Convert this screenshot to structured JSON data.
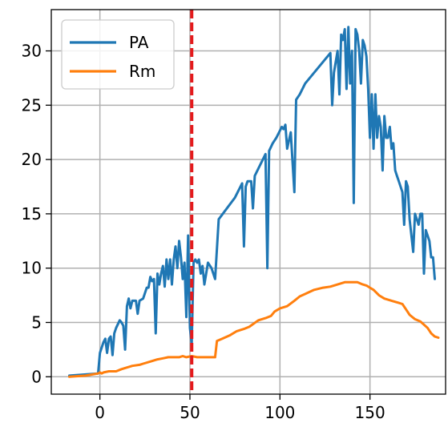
{
  "chart_data": {
    "type": "line",
    "title": "",
    "xlabel": "",
    "ylabel": "",
    "xlim": [
      -27,
      192
    ],
    "ylim": [
      -1.6,
      33.8
    ],
    "xticks": [
      0,
      50,
      100,
      150
    ],
    "yticks": [
      0,
      5,
      10,
      15,
      20,
      25,
      30
    ],
    "grid": true,
    "legend": "top-left",
    "vline": {
      "x": 51,
      "color": "#e41a1c",
      "style": "dashed"
    },
    "series": [
      {
        "name": "PA",
        "color": "#1f77b4",
        "points": [
          [
            -17,
            0.1
          ],
          [
            -1,
            0.3
          ],
          [
            0,
            2.2
          ],
          [
            2,
            3.2
          ],
          [
            3,
            3.5
          ],
          [
            4,
            2.2
          ],
          [
            5,
            3.5
          ],
          [
            6,
            3.7
          ],
          [
            7,
            2.0
          ],
          [
            8,
            4.0
          ],
          [
            9,
            4.5
          ],
          [
            11,
            5.2
          ],
          [
            12,
            5.0
          ],
          [
            13,
            4.7
          ],
          [
            14,
            2.5
          ],
          [
            15,
            6.5
          ],
          [
            16,
            7.2
          ],
          [
            17,
            6.3
          ],
          [
            18,
            7.0
          ],
          [
            20,
            7.0
          ],
          [
            21,
            5.8
          ],
          [
            22,
            7.0
          ],
          [
            24,
            7.2
          ],
          [
            26,
            8.2
          ],
          [
            27,
            8.2
          ],
          [
            28,
            9.2
          ],
          [
            29,
            8.8
          ],
          [
            30,
            9.0
          ],
          [
            31,
            4.0
          ],
          [
            32,
            9.5
          ],
          [
            33,
            8.5
          ],
          [
            34,
            9.5
          ],
          [
            35,
            10.2
          ],
          [
            36,
            8.3
          ],
          [
            37,
            10.8
          ],
          [
            38,
            9.0
          ],
          [
            39,
            10.8
          ],
          [
            40,
            8.5
          ],
          [
            41,
            10.8
          ],
          [
            42,
            12.0
          ],
          [
            43,
            10.0
          ],
          [
            44,
            12.5
          ],
          [
            45,
            11.0
          ],
          [
            46,
            9.0
          ],
          [
            47,
            10.5
          ],
          [
            48,
            5.5
          ],
          [
            49,
            13.0
          ],
          [
            50,
            4.5
          ],
          [
            51,
            3.0
          ],
          [
            52,
            10.5
          ],
          [
            53,
            10.8
          ],
          [
            54,
            10.5
          ],
          [
            55,
            10.8
          ],
          [
            56,
            9.5
          ],
          [
            57,
            10.2
          ],
          [
            58,
            8.5
          ],
          [
            60,
            10.5
          ],
          [
            62,
            10.0
          ],
          [
            64,
            9.0
          ],
          [
            66,
            14.5
          ],
          [
            75,
            16.5
          ],
          [
            79,
            17.8
          ],
          [
            80,
            12.0
          ],
          [
            81,
            17.5
          ],
          [
            82,
            18.0
          ],
          [
            84,
            18.0
          ],
          [
            85,
            15.5
          ],
          [
            86,
            18.5
          ],
          [
            92,
            20.5
          ],
          [
            93,
            10.0
          ],
          [
            94,
            20.8
          ],
          [
            96,
            21.5
          ],
          [
            98,
            22.0
          ],
          [
            101,
            23.0
          ],
          [
            102,
            22.8
          ],
          [
            103,
            23.2
          ],
          [
            104,
            21.0
          ],
          [
            106,
            22.5
          ],
          [
            108,
            17.0
          ],
          [
            109,
            25.5
          ],
          [
            111,
            26.0
          ],
          [
            114,
            27.0
          ],
          [
            128,
            29.8
          ],
          [
            129,
            25.0
          ],
          [
            130,
            28.0
          ],
          [
            132,
            30.0
          ],
          [
            133,
            26.0
          ],
          [
            134,
            31.5
          ],
          [
            135,
            31.0
          ],
          [
            136,
            32.0
          ],
          [
            137,
            26.5
          ],
          [
            138,
            32.2
          ],
          [
            139,
            27.0
          ],
          [
            140,
            30.0
          ],
          [
            141,
            16.0
          ],
          [
            142,
            32.0
          ],
          [
            143,
            31.5
          ],
          [
            144,
            30.0
          ],
          [
            145,
            27.0
          ],
          [
            146,
            31.0
          ],
          [
            147,
            30.5
          ],
          [
            148,
            29.5
          ],
          [
            149,
            26.5
          ],
          [
            150,
            22.0
          ],
          [
            151,
            26.0
          ],
          [
            152,
            21.0
          ],
          [
            153,
            26.0
          ],
          [
            154,
            22.0
          ],
          [
            155,
            24.0
          ],
          [
            156,
            23.0
          ],
          [
            157,
            19.0
          ],
          [
            158,
            24.0
          ],
          [
            159,
            22.0
          ],
          [
            160,
            22.0
          ],
          [
            161,
            23.0
          ],
          [
            162,
            21.0
          ],
          [
            163,
            21.5
          ],
          [
            164,
            19.0
          ],
          [
            165,
            18.5
          ],
          [
            166,
            18.0
          ],
          [
            168,
            17.0
          ],
          [
            169,
            14.0
          ],
          [
            170,
            18.0
          ],
          [
            171,
            17.5
          ],
          [
            172,
            14.5
          ],
          [
            174,
            11.5
          ],
          [
            175,
            15.0
          ],
          [
            176,
            14.5
          ],
          [
            177,
            14.0
          ],
          [
            178,
            15.0
          ],
          [
            179,
            15.0
          ],
          [
            180,
            9.5
          ],
          [
            181,
            13.5
          ],
          [
            183,
            12.5
          ],
          [
            184,
            11.0
          ],
          [
            185,
            11.0
          ],
          [
            186,
            9.0
          ]
        ]
      },
      {
        "name": "Rm",
        "color": "#ff7f0e",
        "points": [
          [
            -17,
            0.0
          ],
          [
            -8,
            0.1
          ],
          [
            -1,
            0.3
          ],
          [
            0,
            0.4
          ],
          [
            1,
            0.3
          ],
          [
            2,
            0.4
          ],
          [
            5,
            0.5
          ],
          [
            9,
            0.5
          ],
          [
            12,
            0.7
          ],
          [
            16,
            0.9
          ],
          [
            18,
            1.0
          ],
          [
            22,
            1.1
          ],
          [
            24,
            1.2
          ],
          [
            28,
            1.4
          ],
          [
            32,
            1.6
          ],
          [
            35,
            1.7
          ],
          [
            38,
            1.8
          ],
          [
            41,
            1.8
          ],
          [
            44,
            1.8
          ],
          [
            46,
            1.9
          ],
          [
            48,
            1.8
          ],
          [
            51,
            1.9
          ],
          [
            54,
            1.8
          ],
          [
            58,
            1.8
          ],
          [
            61,
            1.8
          ],
          [
            64,
            1.8
          ],
          [
            65,
            3.3
          ],
          [
            68,
            3.5
          ],
          [
            72,
            3.8
          ],
          [
            76,
            4.2
          ],
          [
            80,
            4.4
          ],
          [
            83,
            4.6
          ],
          [
            88,
            5.2
          ],
          [
            92,
            5.4
          ],
          [
            95,
            5.6
          ],
          [
            97,
            6.0
          ],
          [
            100,
            6.3
          ],
          [
            104,
            6.5
          ],
          [
            108,
            7.0
          ],
          [
            111,
            7.4
          ],
          [
            115,
            7.7
          ],
          [
            119,
            8.0
          ],
          [
            124,
            8.2
          ],
          [
            128,
            8.3
          ],
          [
            132,
            8.5
          ],
          [
            136,
            8.7
          ],
          [
            140,
            8.7
          ],
          [
            143,
            8.7
          ],
          [
            146,
            8.5
          ],
          [
            148,
            8.4
          ],
          [
            150,
            8.2
          ],
          [
            152,
            8.0
          ],
          [
            155,
            7.5
          ],
          [
            158,
            7.2
          ],
          [
            162,
            7.0
          ],
          [
            166,
            6.8
          ],
          [
            168,
            6.7
          ],
          [
            170,
            6.2
          ],
          [
            172,
            5.7
          ],
          [
            175,
            5.3
          ],
          [
            178,
            5.1
          ],
          [
            180,
            4.8
          ],
          [
            182,
            4.5
          ],
          [
            184,
            4.0
          ],
          [
            186,
            3.7
          ],
          [
            188,
            3.6
          ]
        ]
      }
    ]
  }
}
